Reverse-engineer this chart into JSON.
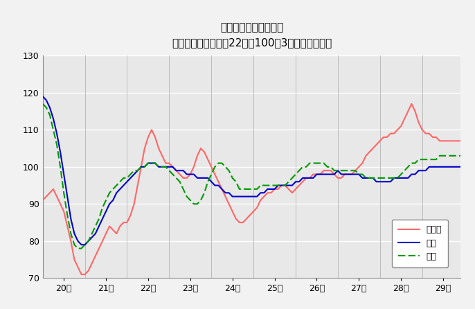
{
  "title": "鉱工業生産指数の推移",
  "subtitle": "（季節調整済、平成22年＝100、3ヶ月移動平均）",
  "ylim": [
    70,
    130
  ],
  "yticks": [
    70,
    80,
    90,
    100,
    110,
    120,
    130
  ],
  "xtick_labels": [
    "20年",
    "21年",
    "22年",
    "23年",
    "24年",
    "25年",
    "26年",
    "27年",
    "28年",
    "29年"
  ],
  "legend_labels": [
    "鳥取県",
    "中国",
    "全国"
  ],
  "tottori_color": "#FF6666",
  "chugoku_color": "#0000CC",
  "zenkoku_color": "#009900",
  "bg_color": "#E8E8E8",
  "fig_bg_color": "#F2F2F2",
  "grid_color": "#FFFFFF",
  "tottori": [
    91,
    92,
    93,
    94,
    92,
    90,
    88,
    84,
    80,
    75,
    73,
    71,
    71,
    72,
    74,
    76,
    78,
    80,
    82,
    84,
    83,
    82,
    84,
    85,
    85,
    87,
    90,
    95,
    100,
    105,
    108,
    110,
    108,
    105,
    103,
    101,
    101,
    100,
    99,
    98,
    97,
    97,
    98,
    100,
    103,
    105,
    104,
    102,
    100,
    98,
    96,
    94,
    92,
    90,
    88,
    86,
    85,
    85,
    86,
    87,
    88,
    89,
    91,
    92,
    93,
    93,
    94,
    94,
    95,
    95,
    94,
    93,
    94,
    95,
    96,
    97,
    97,
    98,
    98,
    98,
    99,
    99,
    99,
    98,
    97,
    97,
    98,
    98,
    98,
    99,
    100,
    101,
    103,
    104,
    105,
    106,
    107,
    108,
    108,
    109,
    109,
    110,
    111,
    113,
    115,
    117,
    115,
    112,
    110,
    109,
    109,
    108,
    108,
    107,
    107,
    107,
    107,
    107,
    107,
    107
  ],
  "chugoku": [
    119,
    118,
    116,
    113,
    109,
    104,
    98,
    92,
    86,
    82,
    80,
    79,
    79,
    80,
    81,
    82,
    84,
    86,
    88,
    90,
    91,
    93,
    94,
    95,
    96,
    97,
    98,
    99,
    100,
    100,
    101,
    101,
    101,
    100,
    100,
    100,
    100,
    100,
    99,
    99,
    99,
    98,
    98,
    98,
    97,
    97,
    97,
    97,
    96,
    95,
    95,
    94,
    93,
    93,
    92,
    92,
    92,
    92,
    92,
    92,
    92,
    92,
    93,
    93,
    94,
    94,
    94,
    95,
    95,
    95,
    95,
    95,
    96,
    96,
    97,
    97,
    97,
    97,
    98,
    98,
    98,
    98,
    98,
    98,
    99,
    98,
    98,
    98,
    98,
    98,
    98,
    97,
    97,
    97,
    97,
    96,
    96,
    96,
    96,
    96,
    97,
    97,
    97,
    97,
    97,
    98,
    98,
    99,
    99,
    99,
    100,
    100,
    100,
    100,
    100,
    100,
    100,
    100,
    100,
    100
  ],
  "zenkoku": [
    117,
    116,
    114,
    110,
    106,
    100,
    93,
    87,
    82,
    79,
    78,
    78,
    79,
    80,
    82,
    84,
    86,
    89,
    91,
    93,
    94,
    95,
    96,
    97,
    97,
    98,
    99,
    99,
    100,
    100,
    101,
    101,
    101,
    100,
    100,
    100,
    99,
    98,
    97,
    96,
    94,
    92,
    91,
    90,
    90,
    91,
    93,
    96,
    98,
    100,
    101,
    101,
    100,
    99,
    97,
    96,
    94,
    94,
    94,
    94,
    94,
    94,
    95,
    95,
    95,
    95,
    95,
    95,
    95,
    95,
    96,
    97,
    98,
    99,
    100,
    100,
    101,
    101,
    101,
    101,
    101,
    100,
    100,
    99,
    99,
    99,
    99,
    99,
    99,
    99,
    98,
    98,
    97,
    97,
    97,
    97,
    97,
    97,
    97,
    97,
    97,
    97,
    98,
    99,
    100,
    101,
    101,
    102,
    102,
    102,
    102,
    102,
    102,
    103,
    103,
    103,
    103,
    103,
    103,
    103
  ],
  "n_points": 120,
  "months_per_year": 12
}
